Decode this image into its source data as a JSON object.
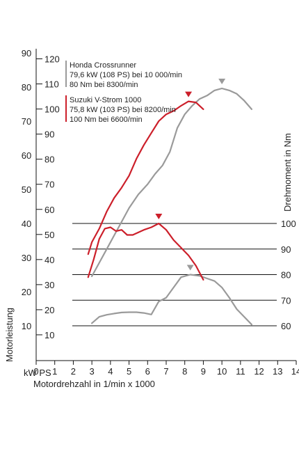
{
  "chart_data": {
    "type": "line",
    "title": "",
    "xlabel": "Motordrehzahl in 1/min x 1000",
    "ylabel_power": "Motorleistung",
    "ylabel_power_units": "kW PS",
    "ylabel_torque": "Drehmoment in Nm",
    "x_ticks": [
      "0",
      "1",
      "2",
      "3",
      "4",
      "5",
      "6",
      "7",
      "8",
      "9",
      "10",
      "11",
      "12",
      "13",
      "14"
    ],
    "xlim": [
      0,
      14
    ],
    "kw_ticks": [
      "10",
      "20",
      "30",
      "40",
      "50",
      "60",
      "70",
      "80",
      "90"
    ],
    "ps_ticks": [
      "10",
      "20",
      "30",
      "40",
      "50",
      "60",
      "70",
      "80",
      "90",
      "100",
      "110",
      "120"
    ],
    "kw_range": [
      10,
      90
    ],
    "torque_ticks": [
      "60",
      "70",
      "80",
      "90",
      "100"
    ],
    "torque_range": [
      60,
      100
    ],
    "grid": "horizontal lines at torque ticks",
    "legend": [
      {
        "title": "Honda Crossrunner",
        "lines": [
          "79,6 kW (108 PS) bei 10 000/min",
          "80 Nm bei 8300/min"
        ],
        "color": "#9a9a9a"
      },
      {
        "title": "Suzuki V-Strom 1000",
        "lines": [
          "75,8 kW (103 PS) bei 8200/min",
          "100 Nm bei 6600/min"
        ],
        "color": "#cc1f2a"
      }
    ],
    "series": [
      {
        "name": "Honda Crossrunner",
        "quantity": "power",
        "unit": "kW",
        "color": "#9a9a9a",
        "x": [
          3.0,
          3.4,
          3.8,
          4.2,
          4.6,
          5.0,
          5.5,
          6.0,
          6.4,
          6.8,
          7.2,
          7.6,
          8.0,
          8.4,
          8.8,
          9.2,
          9.6,
          10.0,
          10.4,
          10.8,
          11.2,
          11.6
        ],
        "y": [
          24.5,
          28.5,
          32.5,
          36.5,
          40.5,
          44.5,
          48.5,
          51.5,
          54.5,
          57.0,
          61.0,
          68.0,
          72.0,
          74.5,
          76.5,
          77.5,
          79.0,
          79.6,
          79.0,
          78.0,
          76.0,
          73.5
        ]
      },
      {
        "name": "Suzuki V-Strom 1000",
        "quantity": "power",
        "unit": "kW",
        "color": "#cc1f2a",
        "x": [
          2.8,
          3.0,
          3.4,
          3.8,
          4.2,
          4.6,
          5.0,
          5.4,
          5.8,
          6.2,
          6.6,
          7.0,
          7.4,
          7.8,
          8.2,
          8.6,
          9.0
        ],
        "y": [
          31.0,
          34.5,
          38.5,
          43.5,
          47.5,
          50.5,
          54.0,
          59.0,
          63.0,
          66.5,
          70.0,
          72.0,
          73.0,
          74.5,
          75.8,
          75.5,
          73.5
        ]
      },
      {
        "name": "Honda Crossrunner",
        "quantity": "torque",
        "unit": "Nm",
        "color": "#9a9a9a",
        "x": [
          3.0,
          3.4,
          3.8,
          4.2,
          4.6,
          5.0,
          5.4,
          5.8,
          6.2,
          6.6,
          7.0,
          7.4,
          7.8,
          8.3,
          8.8,
          9.2,
          9.6,
          10.0,
          10.4,
          10.8,
          11.2,
          11.6
        ],
        "y": [
          61.0,
          63.5,
          64.3,
          64.8,
          65.2,
          65.3,
          65.3,
          65.0,
          64.4,
          69.5,
          71.0,
          75.0,
          79.0,
          80.0,
          79.5,
          78.5,
          77.5,
          75.0,
          71.0,
          66.5,
          63.5,
          60.5
        ]
      },
      {
        "name": "Suzuki V-Strom 1000",
        "quantity": "torque",
        "unit": "Nm",
        "color": "#cc1f2a",
        "x": [
          2.8,
          3.1,
          3.4,
          3.7,
          4.0,
          4.3,
          4.6,
          4.9,
          5.2,
          5.5,
          5.8,
          6.2,
          6.6,
          7.0,
          7.4,
          7.8,
          8.2,
          8.6,
          9.0
        ],
        "y": [
          79.0,
          86.0,
          94.0,
          98.0,
          98.5,
          97.0,
          97.5,
          95.5,
          95.5,
          96.5,
          97.5,
          98.5,
          100.0,
          97.5,
          93.5,
          90.5,
          87.5,
          83.5,
          78.0
        ]
      }
    ],
    "peak_markers": [
      {
        "series": "Honda Crossrunner",
        "quantity": "power",
        "x": 10.0,
        "y": 79.6
      },
      {
        "series": "Suzuki V-Strom 1000",
        "quantity": "power",
        "x": 8.2,
        "y": 75.8
      },
      {
        "series": "Suzuki V-Strom 1000",
        "quantity": "torque",
        "x": 6.6,
        "y": 100
      },
      {
        "series": "Honda Crossrunner",
        "quantity": "torque",
        "x": 8.3,
        "y": 80
      }
    ]
  }
}
